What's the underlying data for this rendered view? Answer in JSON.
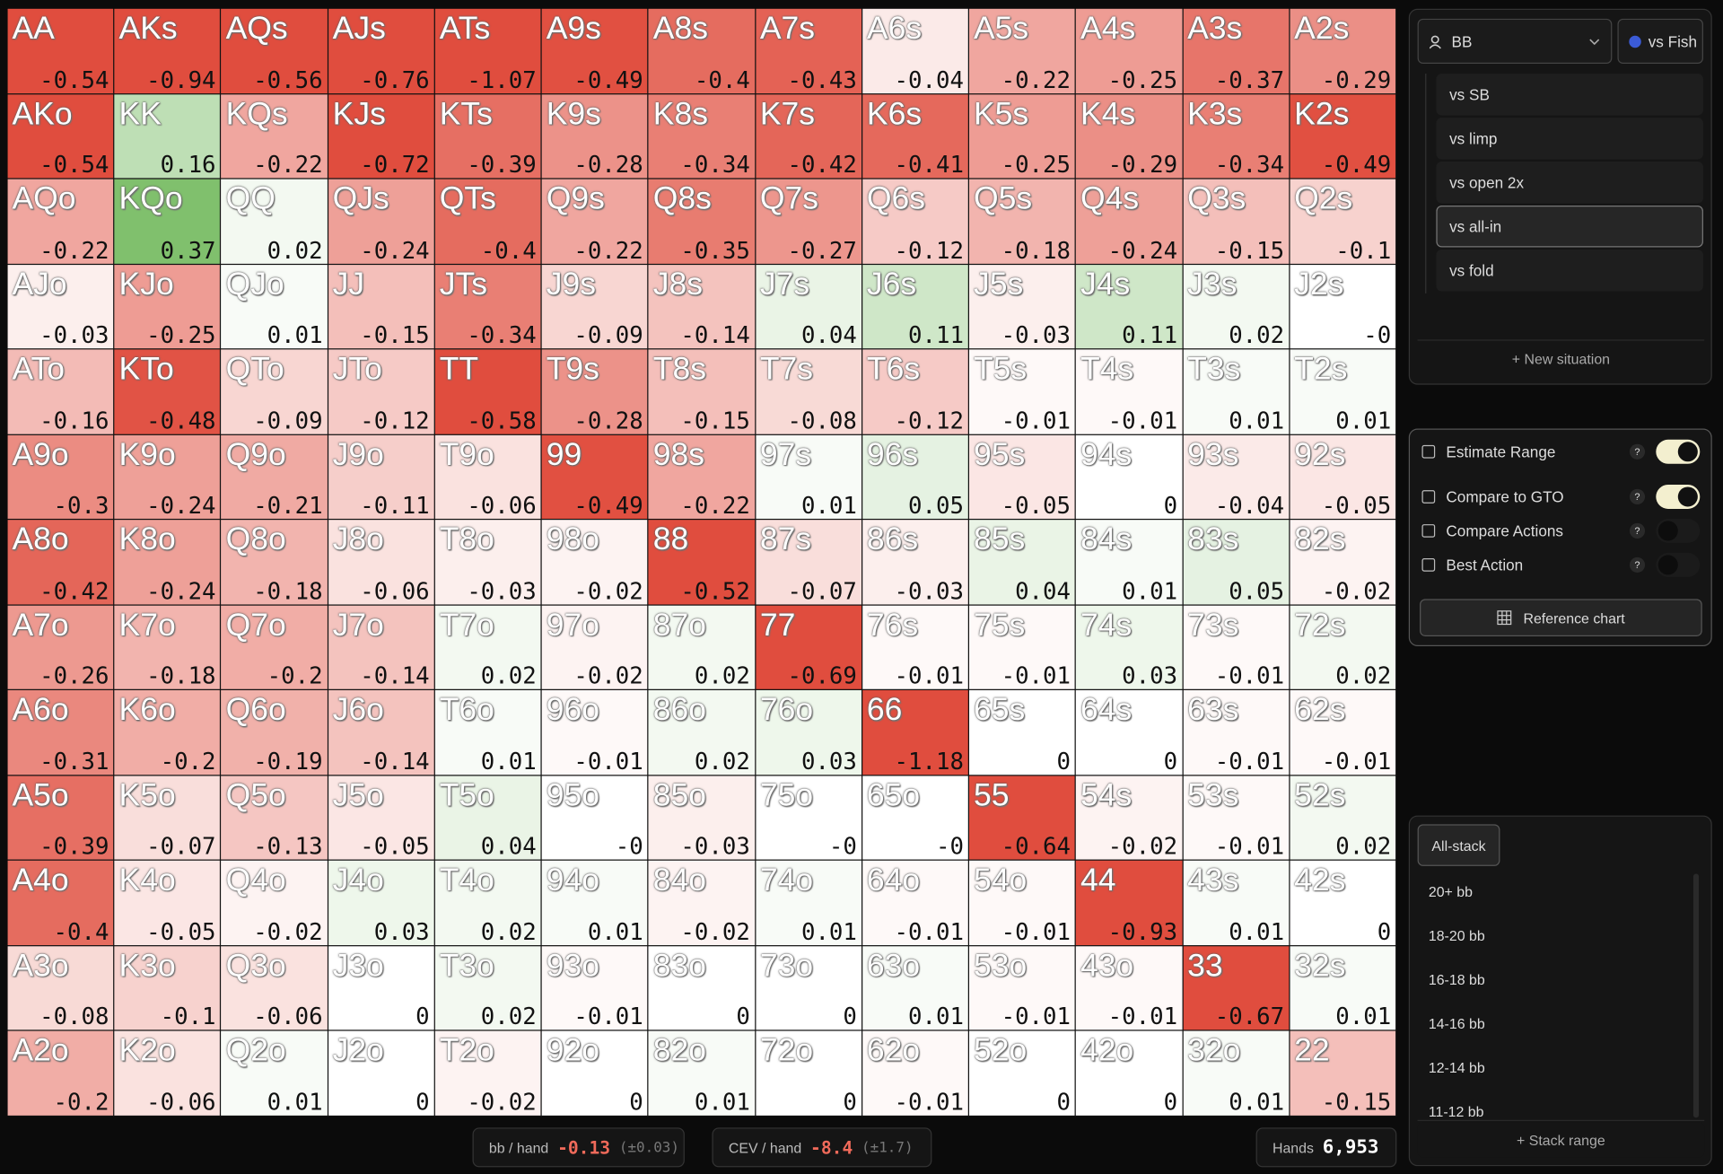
{
  "grid": {
    "rows": [
      [
        [
          "AA",
          "-0.54"
        ],
        [
          "AKs",
          "-0.94"
        ],
        [
          "AQs",
          "-0.56"
        ],
        [
          "AJs",
          "-0.76"
        ],
        [
          "ATs",
          "-1.07"
        ],
        [
          "A9s",
          "-0.49"
        ],
        [
          "A8s",
          "-0.4"
        ],
        [
          "A7s",
          "-0.43"
        ],
        [
          "A6s",
          "-0.04"
        ],
        [
          "A5s",
          "-0.22"
        ],
        [
          "A4s",
          "-0.25"
        ],
        [
          "A3s",
          "-0.37"
        ],
        [
          "A2s",
          "-0.29"
        ]
      ],
      [
        [
          "AKo",
          "-0.54"
        ],
        [
          "KK",
          "0.16"
        ],
        [
          "KQs",
          "-0.22"
        ],
        [
          "KJs",
          "-0.72"
        ],
        [
          "KTs",
          "-0.39"
        ],
        [
          "K9s",
          "-0.28"
        ],
        [
          "K8s",
          "-0.34"
        ],
        [
          "K7s",
          "-0.42"
        ],
        [
          "K6s",
          "-0.41"
        ],
        [
          "K5s",
          "-0.25"
        ],
        [
          "K4s",
          "-0.29"
        ],
        [
          "K3s",
          "-0.34"
        ],
        [
          "K2s",
          "-0.49"
        ]
      ],
      [
        [
          "AQo",
          "-0.22"
        ],
        [
          "KQo",
          "0.37"
        ],
        [
          "QQ",
          "0.02"
        ],
        [
          "QJs",
          "-0.24"
        ],
        [
          "QTs",
          "-0.4"
        ],
        [
          "Q9s",
          "-0.22"
        ],
        [
          "Q8s",
          "-0.35"
        ],
        [
          "Q7s",
          "-0.27"
        ],
        [
          "Q6s",
          "-0.12"
        ],
        [
          "Q5s",
          "-0.18"
        ],
        [
          "Q4s",
          "-0.24"
        ],
        [
          "Q3s",
          "-0.15"
        ],
        [
          "Q2s",
          "-0.1"
        ]
      ],
      [
        [
          "AJo",
          "-0.03"
        ],
        [
          "KJo",
          "-0.25"
        ],
        [
          "QJo",
          "0.01"
        ],
        [
          "JJ",
          "-0.15"
        ],
        [
          "JTs",
          "-0.34"
        ],
        [
          "J9s",
          "-0.09"
        ],
        [
          "J8s",
          "-0.14"
        ],
        [
          "J7s",
          "0.04"
        ],
        [
          "J6s",
          "0.11"
        ],
        [
          "J5s",
          "-0.03"
        ],
        [
          "J4s",
          "0.11"
        ],
        [
          "J3s",
          "0.02"
        ],
        [
          "J2s",
          "-0"
        ]
      ],
      [
        [
          "ATo",
          "-0.16"
        ],
        [
          "KTo",
          "-0.48"
        ],
        [
          "QTo",
          "-0.09"
        ],
        [
          "JTo",
          "-0.12"
        ],
        [
          "TT",
          "-0.58"
        ],
        [
          "T9s",
          "-0.28"
        ],
        [
          "T8s",
          "-0.15"
        ],
        [
          "T7s",
          "-0.08"
        ],
        [
          "T6s",
          "-0.12"
        ],
        [
          "T5s",
          "-0.01"
        ],
        [
          "T4s",
          "-0.01"
        ],
        [
          "T3s",
          "0.01"
        ],
        [
          "T2s",
          "0.01"
        ]
      ],
      [
        [
          "A9o",
          "-0.3"
        ],
        [
          "K9o",
          "-0.24"
        ],
        [
          "Q9o",
          "-0.21"
        ],
        [
          "J9o",
          "-0.11"
        ],
        [
          "T9o",
          "-0.06"
        ],
        [
          "99",
          "-0.49"
        ],
        [
          "98s",
          "-0.22"
        ],
        [
          "97s",
          "0.01"
        ],
        [
          "96s",
          "0.05"
        ],
        [
          "95s",
          "-0.05"
        ],
        [
          "94s",
          "0"
        ],
        [
          "93s",
          "-0.04"
        ],
        [
          "92s",
          "-0.05"
        ]
      ],
      [
        [
          "A8o",
          "-0.42"
        ],
        [
          "K8o",
          "-0.24"
        ],
        [
          "Q8o",
          "-0.18"
        ],
        [
          "J8o",
          "-0.06"
        ],
        [
          "T8o",
          "-0.03"
        ],
        [
          "98o",
          "-0.02"
        ],
        [
          "88",
          "-0.52"
        ],
        [
          "87s",
          "-0.07"
        ],
        [
          "86s",
          "-0.03"
        ],
        [
          "85s",
          "0.04"
        ],
        [
          "84s",
          "0.01"
        ],
        [
          "83s",
          "0.05"
        ],
        [
          "82s",
          "-0.02"
        ]
      ],
      [
        [
          "A7o",
          "-0.26"
        ],
        [
          "K7o",
          "-0.18"
        ],
        [
          "Q7o",
          "-0.2"
        ],
        [
          "J7o",
          "-0.14"
        ],
        [
          "T7o",
          "0.02"
        ],
        [
          "97o",
          "-0.02"
        ],
        [
          "87o",
          "0.02"
        ],
        [
          "77",
          "-0.69"
        ],
        [
          "76s",
          "-0.01"
        ],
        [
          "75s",
          "-0.01"
        ],
        [
          "74s",
          "0.03"
        ],
        [
          "73s",
          "-0.01"
        ],
        [
          "72s",
          "0.02"
        ]
      ],
      [
        [
          "A6o",
          "-0.31"
        ],
        [
          "K6o",
          "-0.2"
        ],
        [
          "Q6o",
          "-0.19"
        ],
        [
          "J6o",
          "-0.14"
        ],
        [
          "T6o",
          "0.01"
        ],
        [
          "96o",
          "-0.01"
        ],
        [
          "86o",
          "0.02"
        ],
        [
          "76o",
          "0.03"
        ],
        [
          "66",
          "-1.18"
        ],
        [
          "65s",
          "0"
        ],
        [
          "64s",
          "0"
        ],
        [
          "63s",
          "-0.01"
        ],
        [
          "62s",
          "-0.01"
        ]
      ],
      [
        [
          "A5o",
          "-0.39"
        ],
        [
          "K5o",
          "-0.07"
        ],
        [
          "Q5o",
          "-0.13"
        ],
        [
          "J5o",
          "-0.05"
        ],
        [
          "T5o",
          "0.04"
        ],
        [
          "95o",
          "-0"
        ],
        [
          "85o",
          "-0.03"
        ],
        [
          "75o",
          "-0"
        ],
        [
          "65o",
          "-0"
        ],
        [
          "55",
          "-0.64"
        ],
        [
          "54s",
          "-0.02"
        ],
        [
          "53s",
          "-0.01"
        ],
        [
          "52s",
          "0.02"
        ]
      ],
      [
        [
          "A4o",
          "-0.4"
        ],
        [
          "K4o",
          "-0.05"
        ],
        [
          "Q4o",
          "-0.02"
        ],
        [
          "J4o",
          "0.03"
        ],
        [
          "T4o",
          "0.02"
        ],
        [
          "94o",
          "0.01"
        ],
        [
          "84o",
          "-0.02"
        ],
        [
          "74o",
          "0.01"
        ],
        [
          "64o",
          "-0.01"
        ],
        [
          "54o",
          "-0.01"
        ],
        [
          "44",
          "-0.93"
        ],
        [
          "43s",
          "0.01"
        ],
        [
          "42s",
          "0"
        ]
      ],
      [
        [
          "A3o",
          "-0.08"
        ],
        [
          "K3o",
          "-0.1"
        ],
        [
          "Q3o",
          "-0.06"
        ],
        [
          "J3o",
          "0"
        ],
        [
          "T3o",
          "0.02"
        ],
        [
          "93o",
          "-0.01"
        ],
        [
          "83o",
          "0"
        ],
        [
          "73o",
          "0"
        ],
        [
          "63o",
          "0.01"
        ],
        [
          "53o",
          "-0.01"
        ],
        [
          "43o",
          "-0.01"
        ],
        [
          "33",
          "-0.67"
        ],
        [
          "32s",
          "0.01"
        ]
      ],
      [
        [
          "A2o",
          "-0.2"
        ],
        [
          "K2o",
          "-0.06"
        ],
        [
          "Q2o",
          "0.01"
        ],
        [
          "J2o",
          "0"
        ],
        [
          "T2o",
          "-0.02"
        ],
        [
          "92o",
          "0"
        ],
        [
          "82o",
          "0.01"
        ],
        [
          "72o",
          "0"
        ],
        [
          "62o",
          "-0.01"
        ],
        [
          "52o",
          "0"
        ],
        [
          "42o",
          "0"
        ],
        [
          "32o",
          "0.01"
        ],
        [
          "22",
          "-0.15"
        ]
      ]
    ]
  },
  "footer": {
    "bb": {
      "label": "bb / hand",
      "value": "-0.13",
      "error": "(±0.03)"
    },
    "cev": {
      "label": "CEV / hand",
      "value": "-8.4",
      "error": "(±1.7)"
    },
    "hands": {
      "label": "Hands",
      "value": "6,953"
    }
  },
  "situations": {
    "position": "BB",
    "opponent": "vs Fish",
    "items": [
      "vs SB",
      "vs limp",
      "vs open 2x",
      "vs all-in",
      "vs fold"
    ],
    "selected": 3,
    "add": "+ New situation"
  },
  "options": {
    "toggles": [
      {
        "label": "Estimate Range",
        "help": "?",
        "on": true
      },
      {
        "label": "Compare to GTO",
        "help": "?",
        "on": true
      },
      {
        "label": "Compare Actions",
        "help": "?",
        "on": false
      },
      {
        "label": "Best Action",
        "help": "?",
        "on": false
      }
    ],
    "reference": "Reference chart"
  },
  "stacks": {
    "items": [
      "All-stack",
      "20+ bb",
      "18-20 bb",
      "16-18 bb",
      "14-16 bb",
      "12-14 bb",
      "11-12 bb"
    ],
    "selected": 0,
    "add": "+ Stack range"
  }
}
